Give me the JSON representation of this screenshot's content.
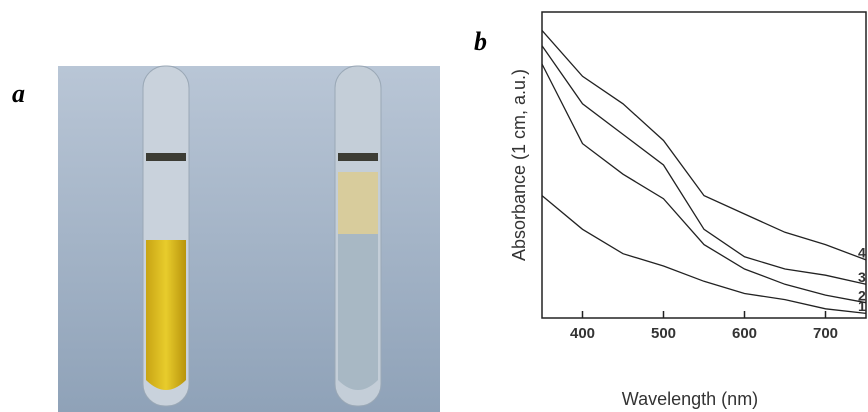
{
  "panel_a_label": "a",
  "chart_data": {
    "type": "line",
    "panel_label": "b",
    "x_label": "Wavelength (nm)",
    "y_label": "Absorbance (1 cm, a.u.)",
    "x": [
      350,
      400,
      450,
      500,
      550,
      600,
      650,
      700,
      750
    ],
    "series": [
      {
        "name": "1",
        "color": "#222222",
        "values": [
          4.0,
          2.9,
          2.1,
          1.7,
          1.2,
          0.8,
          0.6,
          0.3,
          0.15
        ]
      },
      {
        "name": "2",
        "color": "#222222",
        "values": [
          8.3,
          5.7,
          4.7,
          3.9,
          2.4,
          1.6,
          1.1,
          0.75,
          0.5
        ]
      },
      {
        "name": "3",
        "color": "#222222",
        "values": [
          8.9,
          7.0,
          6.0,
          5.0,
          2.9,
          2.0,
          1.6,
          1.4,
          1.1
        ]
      },
      {
        "name": "4",
        "color": "#222222",
        "values": [
          9.4,
          7.9,
          7.0,
          5.8,
          4.0,
          3.4,
          2.8,
          2.4,
          1.9
        ]
      }
    ],
    "xlim": [
      350,
      750
    ],
    "ylim": [
      0,
      10
    ],
    "xticks": [
      400,
      500,
      600,
      700
    ]
  }
}
